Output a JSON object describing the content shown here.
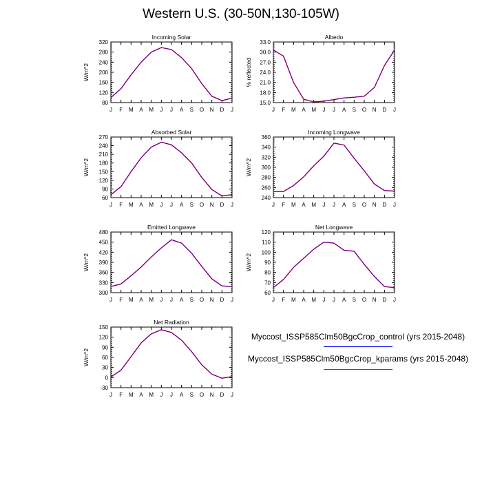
{
  "page_title": "Western U.S. (30-50N,130-105W)",
  "months": [
    "J",
    "F",
    "M",
    "A",
    "M",
    "J",
    "J",
    "A",
    "S",
    "O",
    "N",
    "D",
    "J"
  ],
  "legend": [
    {
      "label": "Myccost_ISSP585Clm50BgcCrop_control (yrs 2015-2048)",
      "color": "#0000ff"
    },
    {
      "label": "Myccost_ISSP585Clm50BgcCrop_kparams (yrs 2015-2048)",
      "color": "#ff0000"
    }
  ],
  "chart_data": [
    {
      "type": "line",
      "title": "Incoming Solar",
      "ylabel": "W/m^2",
      "ylim": [
        80,
        320
      ],
      "yticks": [
        "80",
        "120",
        "160",
        "200",
        "240",
        "280",
        "320"
      ],
      "series": [
        {
          "values": [
            100,
            135,
            190,
            240,
            280,
            298,
            290,
            258,
            215,
            155,
            105,
            88,
            98
          ]
        }
      ]
    },
    {
      "type": "line",
      "title": "Albedo",
      "ylabel": "% reflected",
      "ylim": [
        15,
        33
      ],
      "yticks": [
        "15.0",
        "18.0",
        "21.0",
        "24.0",
        "27.0",
        "30.0",
        "33.0"
      ],
      "series": [
        {
          "values": [
            30.6,
            28.8,
            21.0,
            16.0,
            15.2,
            15.4,
            15.9,
            16.4,
            16.6,
            16.9,
            19.5,
            26.0,
            30.6
          ]
        }
      ]
    },
    {
      "type": "line",
      "title": "Absorbed Solar",
      "ylabel": "W/m^2",
      "ylim": [
        60,
        270
      ],
      "yticks": [
        "60",
        "90",
        "120",
        "150",
        "180",
        "210",
        "240",
        "270"
      ],
      "series": [
        {
          "values": [
            70,
            98,
            150,
            198,
            235,
            252,
            243,
            215,
            180,
            130,
            88,
            66,
            70
          ]
        }
      ]
    },
    {
      "type": "line",
      "title": "Incoming Longwave",
      "ylabel": "W/m^2",
      "ylim": [
        240,
        360
      ],
      "yticks": [
        "240",
        "260",
        "280",
        "300",
        "320",
        "340",
        "360"
      ],
      "series": [
        {
          "values": [
            252,
            252,
            264,
            281,
            303,
            322,
            348,
            344,
            318,
            293,
            267,
            254,
            253
          ]
        }
      ]
    },
    {
      "type": "line",
      "title": "Emitted Longwave",
      "ylabel": "W/m^2",
      "ylim": [
        300,
        480
      ],
      "yticks": [
        "300",
        "330",
        "360",
        "390",
        "420",
        "450",
        "480"
      ],
      "series": [
        {
          "values": [
            318,
            326,
            350,
            376,
            406,
            433,
            457,
            447,
            417,
            378,
            341,
            320,
            318
          ]
        }
      ]
    },
    {
      "type": "line",
      "title": "Net Longwave",
      "ylabel": "W/m^2",
      "ylim": [
        60,
        120
      ],
      "yticks": [
        "60",
        "70",
        "80",
        "90",
        "100",
        "110",
        "120"
      ],
      "series": [
        {
          "values": [
            65,
            73,
            85,
            94,
            103,
            110,
            109,
            102,
            101,
            88,
            76,
            66,
            65
          ]
        }
      ]
    },
    {
      "type": "line",
      "title": "Net Radiation",
      "ylabel": "W/m^2",
      "ylim": [
        -30,
        150
      ],
      "yticks": [
        "-30",
        "0",
        "30",
        "60",
        "90",
        "120",
        "150"
      ],
      "series": [
        {
          "values": [
            2,
            22,
            62,
            103,
            130,
            142,
            134,
            111,
            77,
            38,
            10,
            -2,
            3
          ]
        }
      ]
    }
  ]
}
